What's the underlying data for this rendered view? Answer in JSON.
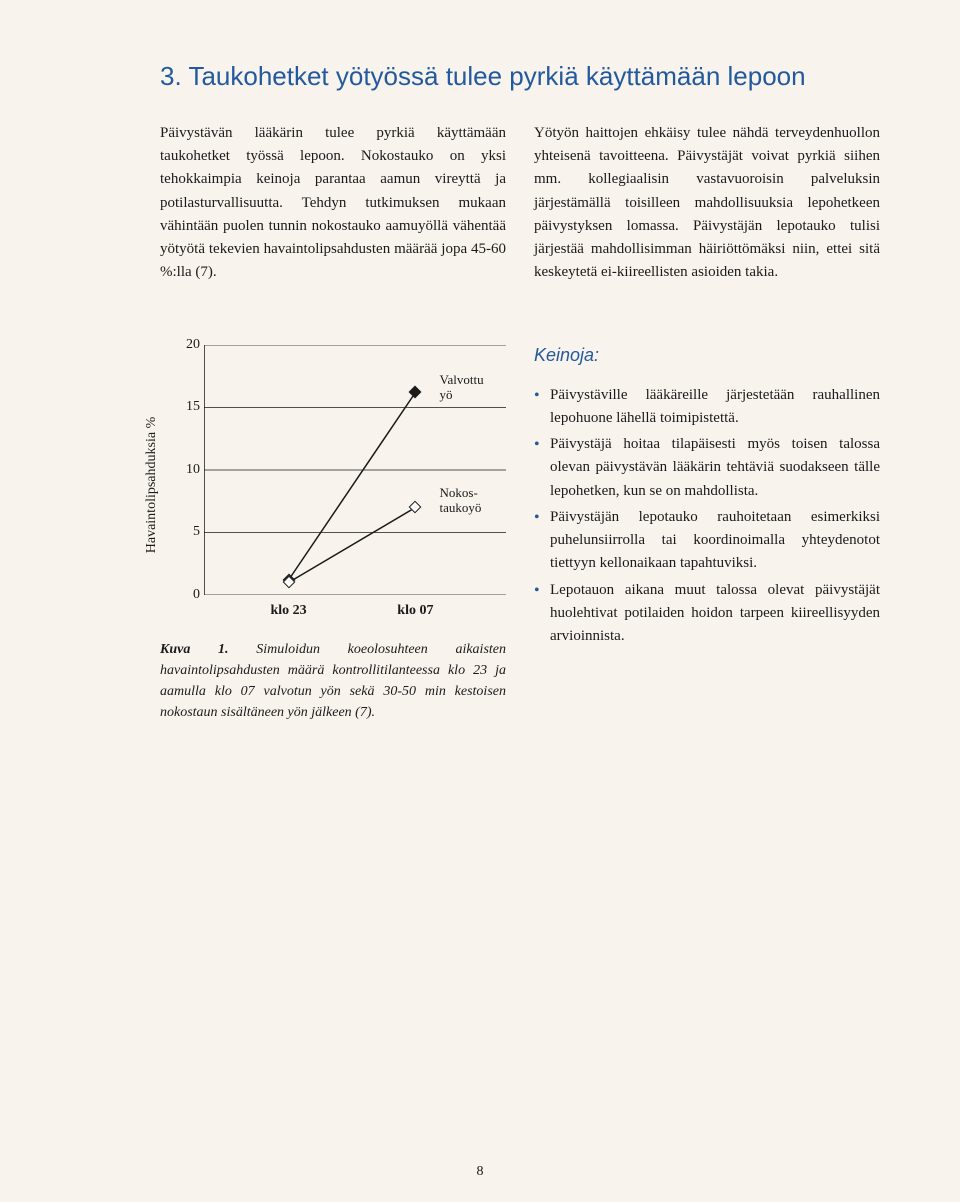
{
  "heading": "3. Taukohetket yötyössä tulee pyrkiä käyttämään lepoon",
  "top": {
    "col1": "Päivystävän lääkärin tulee pyrkiä käyttämään taukohetket työssä lepoon. Nokostauko on yksi tehokkaimpia keinoja parantaa aamun vireyttä ja potilasturvallisuutta. Tehdyn tutkimuksen mukaan vähintään puolen tunnin nokostauko aamuyöllä vähentää yötyötä tekevien havaintolipsahdusten määrää jopa 45-60 %:lla (7).",
    "col2": "Yötyön haittojen ehkäisy tulee nähdä terveydenhuollon yhteisenä tavoitteena. Päivystäjät voivat pyrkiä siihen mm. kollegiaalisin vastavuoroisin palveluksin järjestämällä toisilleen mahdollisuuksia lepohetkeen päivystyksen lomassa. Päivystäjän lepotauko tulisi järjestää mahdollisimman häiriöttömäksi niin, ettei sitä keskeytetä ei-kiireellisten asioiden takia."
  },
  "chart": {
    "ylabel": "Havaintolipsahduksia %",
    "yticks": [
      0,
      5,
      10,
      15,
      20
    ],
    "ylim": [
      0,
      20
    ],
    "xticks": [
      "klo 23",
      "klo 07"
    ],
    "x_positions_pct": [
      28,
      70
    ],
    "series": [
      {
        "name": "Valvottu yö",
        "marker_fill": "#1a1a1a",
        "y_values": [
          1.2,
          16.2
        ],
        "label_lines": [
          "Valvottu",
          "yö"
        ],
        "label_x_pct": 78,
        "label_y_val": 16.5
      },
      {
        "name": "Nokostaukoyö",
        "marker_fill": "#ffffff",
        "y_values": [
          1.0,
          7.0
        ],
        "label_lines": [
          "Nokos-",
          "taukoyö"
        ],
        "label_x_pct": 78,
        "label_y_val": 7.5
      }
    ],
    "line_color": "#1a1a1a",
    "line_width": 1.5,
    "marker": "diamond",
    "marker_size": 9,
    "axis_color": "#1a1a1a",
    "grid_color": "#1a1a1a",
    "grid_width": 0.8,
    "ytick_fontsize": 14,
    "xtick_fontsize": 14
  },
  "caption": {
    "label": "Kuva 1.",
    "text": " Simuloidun koeolosuhteen aikaisten havaintolipsahdusten määrä kontrollitilanteessa klo 23 ja aamulla klo 07 valvotun yön sekä 30-50 min kestoisen nokostaun sisältäneen yön jälkeen (7)."
  },
  "keinoja": {
    "title": "Keinoja:",
    "items": [
      "Päivystäville lääkäreille järjestetään rauhallinen lepohuone lähellä toimipistettä.",
      "Päivystäjä hoitaa tilapäisesti myös toisen talossa olevan päivystävän lääkärin tehtäviä suodakseen tälle lepohetken, kun se on mahdollista.",
      "Päivystäjän lepotauko rauhoitetaan esimerkiksi puhelunsiirrolla tai koordinoimalla yhteydenotot tiettyyn kellonaikaan tapahtuviksi.",
      "Lepotauon aikana muut talossa olevat päivystäjät huolehtivat potilaiden hoidon tarpeen kiireellisyyden arvioinnista."
    ]
  },
  "page_number": "8"
}
